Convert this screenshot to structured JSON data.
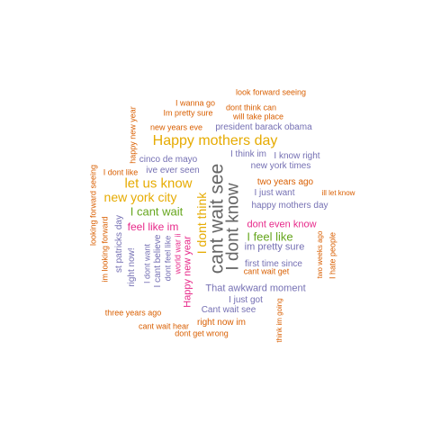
{
  "palette": {
    "orange": "#D95F02",
    "purple": "#7570B3",
    "magenta": "#E7298A",
    "green": "#66A61E",
    "gold": "#E6AB02",
    "gray": "#666666"
  },
  "words": [
    {
      "text": "look forward seeing",
      "color": "#D95F02"
    },
    {
      "text": "I wanna go",
      "color": "#D95F02"
    },
    {
      "text": "dont think can",
      "color": "#D95F02"
    },
    {
      "text": "Im pretty sure",
      "color": "#D95F02"
    },
    {
      "text": "will take place",
      "color": "#D95F02"
    },
    {
      "text": "happy new year",
      "color": "#D95F02"
    },
    {
      "text": "new years eve",
      "color": "#D95F02"
    },
    {
      "text": "president barack obama",
      "color": "#7570B3"
    },
    {
      "text": "Happy mothers day",
      "color": "#E6AB02"
    },
    {
      "text": "I think im",
      "color": "#7570B3"
    },
    {
      "text": "I know right",
      "color": "#7570B3"
    },
    {
      "text": "cinco de mayo",
      "color": "#7570B3"
    },
    {
      "text": "new york times",
      "color": "#7570B3"
    },
    {
      "text": "I dont like",
      "color": "#D95F02"
    },
    {
      "text": "ive ever seen",
      "color": "#7570B3"
    },
    {
      "text": "looking forward seeing",
      "color": "#D95F02"
    },
    {
      "text": "let us know",
      "color": "#E6AB02"
    },
    {
      "text": "two years ago",
      "color": "#D95F02"
    },
    {
      "text": "cant wait see",
      "color": "#666666"
    },
    {
      "text": "I just want",
      "color": "#7570B3"
    },
    {
      "text": "ill let know",
      "color": "#D95F02"
    },
    {
      "text": "new york city",
      "color": "#E6AB02"
    },
    {
      "text": "I dont know",
      "color": "#666666"
    },
    {
      "text": "happy mothers day",
      "color": "#7570B3"
    },
    {
      "text": "I dont think",
      "color": "#E6AB02"
    },
    {
      "text": "I cant wait",
      "color": "#66A61E"
    },
    {
      "text": "im looking forward",
      "color": "#D95F02"
    },
    {
      "text": "st patricks day",
      "color": "#7570B3"
    },
    {
      "text": "dont even know",
      "color": "#E7298A"
    },
    {
      "text": "feel like im",
      "color": "#E7298A"
    },
    {
      "text": "I feel like",
      "color": "#66A61E"
    },
    {
      "text": "right now!",
      "color": "#7570B3"
    },
    {
      "text": "I dont want",
      "color": "#7570B3"
    },
    {
      "text": "I cant believe",
      "color": "#7570B3"
    },
    {
      "text": "dont feel like",
      "color": "#7570B3"
    },
    {
      "text": "world war ii",
      "color": "#E7298A"
    },
    {
      "text": "Happy new year",
      "color": "#E7298A"
    },
    {
      "text": "im pretty sure",
      "color": "#7570B3"
    },
    {
      "text": "first time since",
      "color": "#7570B3"
    },
    {
      "text": "two weeks ago",
      "color": "#D95F02"
    },
    {
      "text": "I hate people",
      "color": "#D95F02"
    },
    {
      "text": "cant wait get",
      "color": "#D95F02"
    },
    {
      "text": "That awkward moment",
      "color": "#7570B3"
    },
    {
      "text": "I just got",
      "color": "#7570B3"
    },
    {
      "text": "three years ago",
      "color": "#D95F02"
    },
    {
      "text": "Cant wait see",
      "color": "#7570B3"
    },
    {
      "text": "think im going",
      "color": "#D95F02"
    },
    {
      "text": "cant wait hear",
      "color": "#D95F02"
    },
    {
      "text": "right now im",
      "color": "#D95F02"
    },
    {
      "text": "dont get wrong",
      "color": "#D95F02"
    }
  ]
}
